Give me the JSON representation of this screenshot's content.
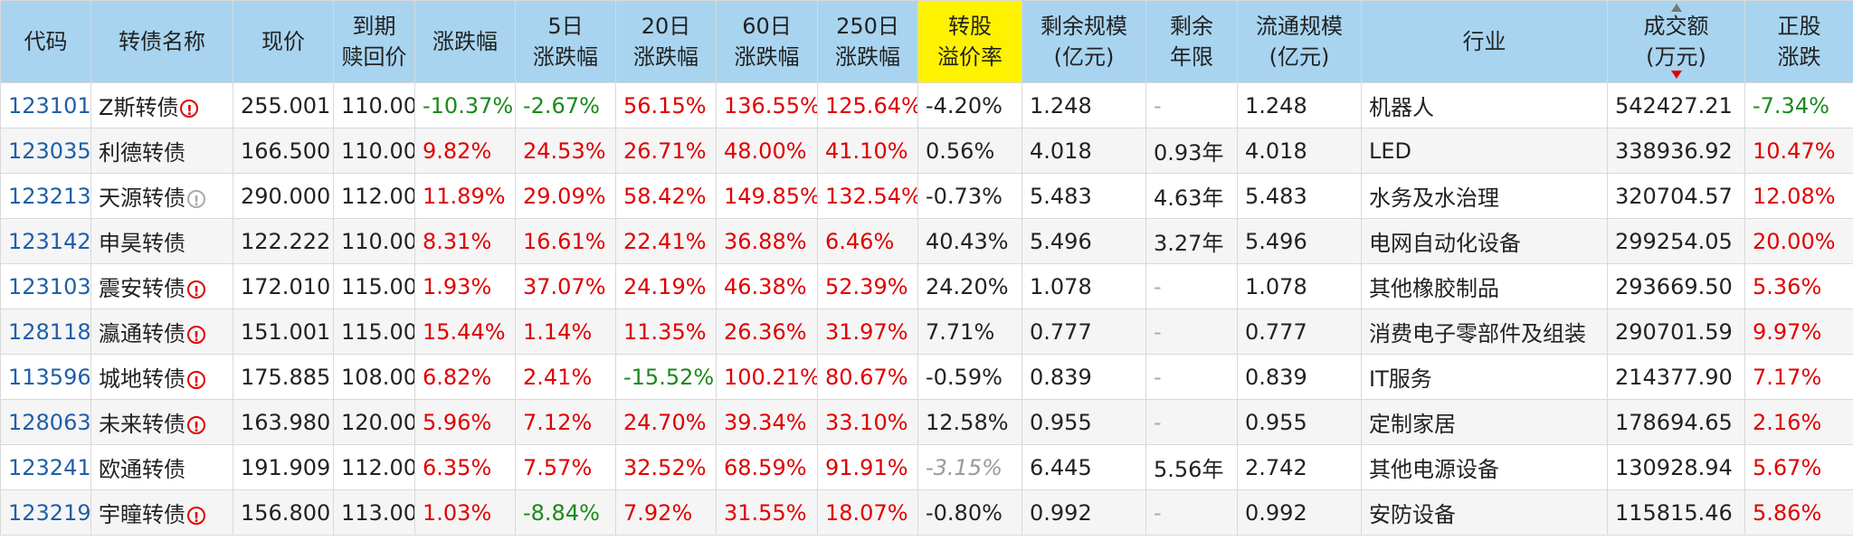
{
  "headers": [
    {
      "l1": "代码",
      "l2": ""
    },
    {
      "l1": "转债名称",
      "l2": ""
    },
    {
      "l1": "现价",
      "l2": ""
    },
    {
      "l1": "到期",
      "l2": "赎回价"
    },
    {
      "l1": "涨跌幅",
      "l2": ""
    },
    {
      "l1": "5日",
      "l2": "涨跌幅"
    },
    {
      "l1": "20日",
      "l2": "涨跌幅"
    },
    {
      "l1": "60日",
      "l2": "涨跌幅"
    },
    {
      "l1": "250日",
      "l2": "涨跌幅"
    },
    {
      "l1": "转股",
      "l2": "溢价率"
    },
    {
      "l1": "剩余规模",
      "l2": "(亿元)"
    },
    {
      "l1": "剩余",
      "l2": "年限"
    },
    {
      "l1": "流通规模",
      "l2": "(亿元)"
    },
    {
      "l1": "行业",
      "l2": ""
    },
    {
      "l1": "成交额",
      "l2": "(万元)"
    },
    {
      "l1": "正股",
      "l2": "涨跌"
    }
  ],
  "rows": [
    {
      "code": "123101",
      "name": "Z斯转债",
      "warn": "red",
      "price": "255.001",
      "redeem": "110.00",
      "chg": "-10.37%",
      "chg5": "-2.67%",
      "chg20": "56.15%",
      "chg60": "136.55%",
      "chg250": "125.64%",
      "premium": "-4.20%",
      "remain": "1.248",
      "years": "-",
      "float": "1.248",
      "industry": "机器人",
      "turnover": "542427.21",
      "stock": "-7.34%"
    },
    {
      "code": "123035",
      "name": "利德转债",
      "warn": "",
      "price": "166.500",
      "redeem": "110.00",
      "chg": "9.82%",
      "chg5": "24.53%",
      "chg20": "26.71%",
      "chg60": "48.00%",
      "chg250": "41.10%",
      "premium": "0.56%",
      "remain": "4.018",
      "years": "0.93年",
      "float": "4.018",
      "industry": "LED",
      "turnover": "338936.92",
      "stock": "10.47%"
    },
    {
      "code": "123213",
      "name": "天源转债",
      "warn": "grey",
      "price": "290.000",
      "redeem": "112.00",
      "chg": "11.89%",
      "chg5": "29.09%",
      "chg20": "58.42%",
      "chg60": "149.85%",
      "chg250": "132.54%",
      "premium": "-0.73%",
      "remain": "5.483",
      "years": "4.63年",
      "float": "5.483",
      "industry": "水务及水治理",
      "turnover": "320704.57",
      "stock": "12.08%"
    },
    {
      "code": "123142",
      "name": "申昊转债",
      "warn": "",
      "price": "122.222",
      "redeem": "110.00",
      "chg": "8.31%",
      "chg5": "16.61%",
      "chg20": "22.41%",
      "chg60": "36.88%",
      "chg250": "6.46%",
      "premium": "40.43%",
      "remain": "5.496",
      "years": "3.27年",
      "float": "5.496",
      "industry": "电网自动化设备",
      "turnover": "299254.05",
      "stock": "20.00%"
    },
    {
      "code": "123103",
      "name": "震安转债",
      "warn": "red",
      "price": "172.010",
      "redeem": "115.00",
      "chg": "1.93%",
      "chg5": "37.07%",
      "chg20": "24.19%",
      "chg60": "46.38%",
      "chg250": "52.39%",
      "premium": "24.20%",
      "remain": "1.078",
      "years": "-",
      "float": "1.078",
      "industry": "其他橡胶制品",
      "turnover": "293669.50",
      "stock": "5.36%"
    },
    {
      "code": "128118",
      "name": "瀛通转债",
      "warn": "red",
      "price": "151.001",
      "redeem": "115.00",
      "chg": "15.44%",
      "chg5": "1.14%",
      "chg20": "11.35%",
      "chg60": "26.36%",
      "chg250": "31.97%",
      "premium": "7.71%",
      "remain": "0.777",
      "years": "-",
      "float": "0.777",
      "industry": "消费电子零部件及组装",
      "turnover": "290701.59",
      "stock": "9.97%"
    },
    {
      "code": "113596",
      "name": "城地转债",
      "warn": "red",
      "price": "175.885",
      "redeem": "108.00",
      "chg": "6.82%",
      "chg5": "2.41%",
      "chg20": "-15.52%",
      "chg60": "100.21%",
      "chg250": "80.67%",
      "premium": "-0.59%",
      "remain": "0.839",
      "years": "-",
      "float": "0.839",
      "industry": "IT服务",
      "turnover": "214377.90",
      "stock": "7.17%"
    },
    {
      "code": "128063",
      "name": "未来转债",
      "warn": "red",
      "price": "163.980",
      "redeem": "120.00",
      "chg": "5.96%",
      "chg5": "7.12%",
      "chg20": "24.70%",
      "chg60": "39.34%",
      "chg250": "33.10%",
      "premium": "12.58%",
      "remain": "0.955",
      "years": "-",
      "float": "0.955",
      "industry": "定制家居",
      "turnover": "178694.65",
      "stock": "2.16%"
    },
    {
      "code": "123241",
      "name": "欧通转债",
      "warn": "",
      "price": "191.909",
      "redeem": "112.00",
      "chg": "6.35%",
      "chg5": "7.57%",
      "chg20": "32.52%",
      "chg60": "68.59%",
      "chg250": "91.91%",
      "premium": "-3.15%",
      "remain": "6.445",
      "years": "5.56年",
      "float": "2.742",
      "industry": "其他电源设备",
      "turnover": "130928.94",
      "stock": "5.67%"
    },
    {
      "code": "123219",
      "name": "宇瞳转债",
      "warn": "red",
      "price": "156.800",
      "redeem": "113.00",
      "chg": "1.03%",
      "chg5": "-8.84%",
      "chg20": "7.92%",
      "chg60": "31.55%",
      "chg250": "18.07%",
      "premium": "-0.80%",
      "remain": "0.992",
      "years": "-",
      "float": "0.992",
      "industry": "安防设备",
      "turnover": "115815.46",
      "stock": "5.86%"
    }
  ],
  "colors": {
    "header_bg": "#a8d4f0",
    "premium_header_bg": "#fff200",
    "up": "#e00000",
    "down": "#1a8a1a",
    "code": "#1f5fa8"
  },
  "icons": {
    "warn": "warning-circle-icon",
    "sort": "sort-arrows-icon"
  },
  "sort": {
    "column": "成交额",
    "direction": "desc"
  }
}
